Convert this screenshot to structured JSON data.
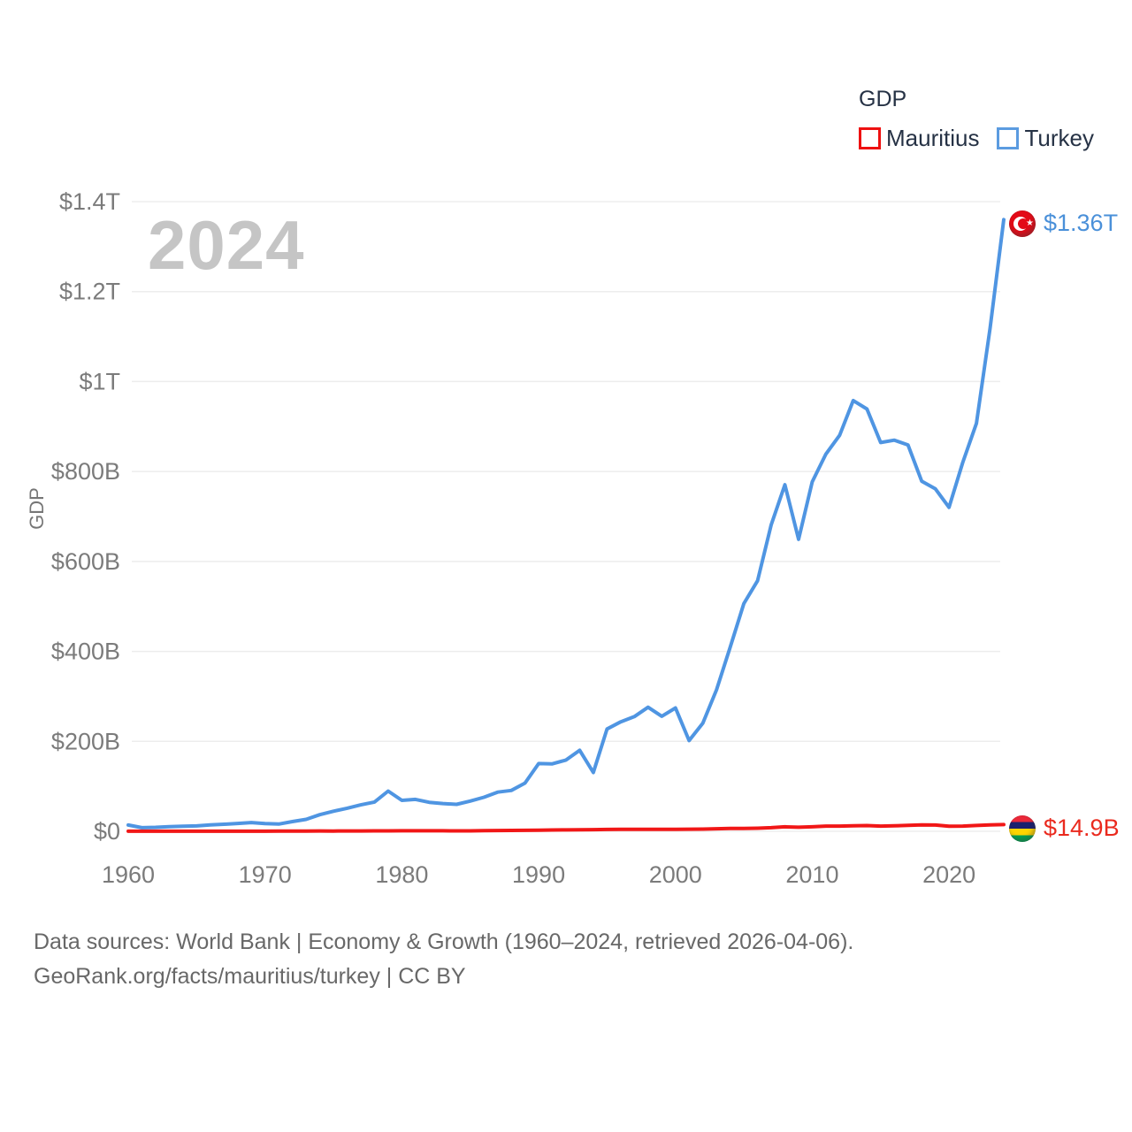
{
  "watermark": "2024",
  "legend": {
    "title": "GDP",
    "items": [
      {
        "label": "Mauritius",
        "color": "#ee1111"
      },
      {
        "label": "Turkey",
        "color": "#5b9be0"
      }
    ]
  },
  "chart_data": {
    "type": "line",
    "title": "GDP",
    "xlabel": "",
    "ylabel": "GDP",
    "xlim": [
      1960,
      2024
    ],
    "ylim_billions": [
      0,
      1400
    ],
    "grid": "horizontal",
    "legend_position": "top-right",
    "y_ticks": [
      {
        "v": 0,
        "label": "$0"
      },
      {
        "v": 200,
        "label": "$200B"
      },
      {
        "v": 400,
        "label": "$400B"
      },
      {
        "v": 600,
        "label": "$600B"
      },
      {
        "v": 800,
        "label": "$800B"
      },
      {
        "v": 1000,
        "label": "$1T"
      },
      {
        "v": 1200,
        "label": "$1.2T"
      },
      {
        "v": 1400,
        "label": "$1.4T"
      }
    ],
    "x_ticks": [
      {
        "v": 1960,
        "label": "1960"
      },
      {
        "v": 1970,
        "label": "1970"
      },
      {
        "v": 1980,
        "label": "1980"
      },
      {
        "v": 1990,
        "label": "1990"
      },
      {
        "v": 2000,
        "label": "2000"
      },
      {
        "v": 2010,
        "label": "2010"
      },
      {
        "v": 2020,
        "label": "2020"
      }
    ],
    "x": [
      1960,
      1961,
      1962,
      1963,
      1964,
      1965,
      1966,
      1967,
      1968,
      1969,
      1970,
      1971,
      1972,
      1973,
      1974,
      1975,
      1976,
      1977,
      1978,
      1979,
      1980,
      1981,
      1982,
      1983,
      1984,
      1985,
      1986,
      1987,
      1988,
      1989,
      1990,
      1991,
      1992,
      1993,
      1994,
      1995,
      1996,
      1997,
      1998,
      1999,
      2000,
      2001,
      2002,
      2003,
      2004,
      2005,
      2006,
      2007,
      2008,
      2009,
      2010,
      2011,
      2012,
      2013,
      2014,
      2015,
      2016,
      2017,
      2018,
      2019,
      2020,
      2021,
      2022,
      2023,
      2024
    ],
    "series": [
      {
        "name": "Mauritius",
        "color": "#f11717",
        "unit": "billion USD",
        "values": [
          0.24,
          0.26,
          0.27,
          0.29,
          0.26,
          0.26,
          0.27,
          0.26,
          0.26,
          0.28,
          0.29,
          0.32,
          0.4,
          0.5,
          0.69,
          0.68,
          0.72,
          0.84,
          0.93,
          1.08,
          1.16,
          1.09,
          1.09,
          1.1,
          1.06,
          1.08,
          1.37,
          1.76,
          2.06,
          2.24,
          2.65,
          2.88,
          3.23,
          3.25,
          3.64,
          4.04,
          4.4,
          4.31,
          4.42,
          4.57,
          4.58,
          4.7,
          4.9,
          5.75,
          6.57,
          6.28,
          6.95,
          8.16,
          9.99,
          9.12,
          10.0,
          11.52,
          11.67,
          12.12,
          12.8,
          11.69,
          12.23,
          13.27,
          14.18,
          14.05,
          11.4,
          11.53,
          12.97,
          14.39,
          14.9
        ]
      },
      {
        "name": "Turkey",
        "color": "#4f95e2",
        "unit": "billion USD",
        "values": [
          14.0,
          8.0,
          8.9,
          10.4,
          11.2,
          11.9,
          14.1,
          15.7,
          17.5,
          19.5,
          17.1,
          16.2,
          21.6,
          26.6,
          37.0,
          44.6,
          51.3,
          58.7,
          65.1,
          89.4,
          68.8,
          71.0,
          64.5,
          61.7,
          60.0,
          67.2,
          75.7,
          87.2,
          90.9,
          107.1,
          150.7,
          150.0,
          158.5,
          180.2,
          130.7,
          227.5,
          243.4,
          255.1,
          275.8,
          255.9,
          274.3,
          201.8,
          240.2,
          314.6,
          408.9,
          506.3,
          557.1,
          681.3,
          770.5,
          649.3,
          776.9,
          838.8,
          880.6,
          957.8,
          938.9,
          864.3,
          869.7,
          859.0,
          778.5,
          761.4,
          720.3,
          819.9,
          907.1,
          1118.3,
          1360.0
        ]
      }
    ],
    "end_labels": [
      {
        "series": "Turkey",
        "text": "$1.36T",
        "color": "#4a90d9",
        "flag": "turkey"
      },
      {
        "series": "Mauritius",
        "text": "$14.9B",
        "color": "#ea2a1e",
        "flag": "mauritius"
      }
    ]
  },
  "flags": {
    "turkey": {
      "background": "#e30a17",
      "crescent": "#ffffff",
      "star": "★"
    },
    "mauritius": {
      "stripes": [
        "#ea2839",
        "#1a206d",
        "#ffd500",
        "#00a551"
      ]
    }
  },
  "colors": {
    "gridline": "#ededed",
    "tick_label": "#7b7b7b",
    "watermark": "#c5c5c5",
    "legend_text": "#263245",
    "footer_text": "#686868"
  },
  "footer": {
    "line1": "Data sources: World Bank | Economy & Growth (1960–2024, retrieved 2026-04-06).",
    "line2": "GeoRank.org/facts/mauritius/turkey | CC BY"
  }
}
